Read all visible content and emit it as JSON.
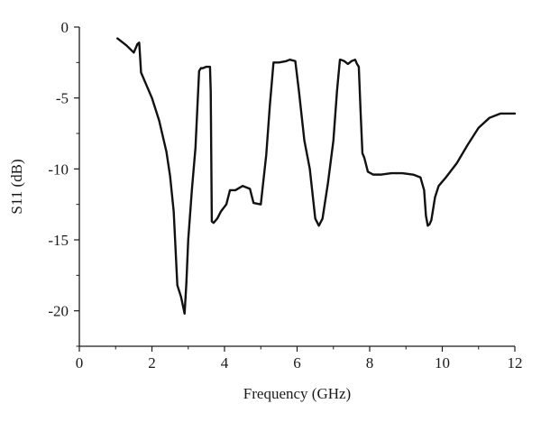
{
  "chart_data": {
    "type": "line",
    "title": "",
    "xlabel": "Frequency (GHz)",
    "ylabel": "S11 (dB)",
    "xlim": [
      0,
      12
    ],
    "ylim": [
      -22.5,
      0
    ],
    "x_ticks": [
      0,
      2,
      4,
      6,
      8,
      10,
      12
    ],
    "x_tick_labels": [
      "0",
      "2",
      "4",
      "6",
      "8",
      "10",
      "12"
    ],
    "y_ticks": [
      0,
      -5,
      -10,
      -15,
      -20
    ],
    "y_tick_labels": [
      "0",
      "-5",
      "-10",
      "-15",
      "-20"
    ],
    "grid": false,
    "legend": "none",
    "colors": {
      "line": "#111111",
      "axis": "#1a1a1a",
      "background": "#ffffff"
    },
    "series": [
      {
        "x": [
          1.05,
          1.3,
          1.5,
          1.6,
          1.65,
          1.7,
          1.8,
          2.0,
          2.2,
          2.4,
          2.5,
          2.6,
          2.7,
          2.8,
          2.9,
          2.95,
          3.0,
          3.1,
          3.2,
          3.3,
          3.35,
          3.4,
          3.5,
          3.6,
          3.62,
          3.65,
          3.7,
          3.8,
          3.9,
          4.05,
          4.15,
          4.3,
          4.5,
          4.7,
          4.8,
          5.0,
          5.15,
          5.25,
          5.35,
          5.5,
          5.7,
          5.8,
          5.95,
          6.05,
          6.2,
          6.35,
          6.5,
          6.6,
          6.7,
          6.85,
          7.0,
          7.1,
          7.18,
          7.2,
          7.3,
          7.4,
          7.5,
          7.6,
          7.65,
          7.7,
          7.75,
          7.8,
          7.85,
          7.95,
          8.1,
          8.3,
          8.6,
          8.9,
          9.2,
          9.4,
          9.5,
          9.55,
          9.6,
          9.65,
          9.7,
          9.8,
          9.9,
          10.1,
          10.4,
          10.7,
          11.0,
          11.3,
          11.6,
          11.8,
          12.0
        ],
        "y": [
          -0.8,
          -1.3,
          -1.8,
          -1.2,
          -1.1,
          -3.2,
          -3.8,
          -5.0,
          -6.6,
          -8.8,
          -10.5,
          -13.0,
          -18.2,
          -19.0,
          -20.2,
          -18.0,
          -15.0,
          -11.5,
          -8.5,
          -3.1,
          -2.9,
          -2.9,
          -2.8,
          -2.8,
          -4.5,
          -13.7,
          -13.8,
          -13.5,
          -13.0,
          -12.5,
          -11.5,
          -11.5,
          -11.2,
          -11.4,
          -12.4,
          -12.5,
          -9.0,
          -5.5,
          -2.5,
          -2.5,
          -2.4,
          -2.3,
          -2.4,
          -4.5,
          -8.0,
          -10.0,
          -13.5,
          -14.0,
          -13.5,
          -11.0,
          -8.0,
          -4.5,
          -2.3,
          -2.3,
          -2.4,
          -2.6,
          -2.4,
          -2.3,
          -2.6,
          -2.8,
          -6.0,
          -8.9,
          -9.2,
          -10.2,
          -10.4,
          -10.4,
          -10.3,
          -10.3,
          -10.4,
          -10.6,
          -11.5,
          -13.3,
          -14.0,
          -13.9,
          -13.6,
          -12.0,
          -11.2,
          -10.6,
          -9.6,
          -8.3,
          -7.1,
          -6.4,
          -6.1,
          -6.1,
          -6.1
        ]
      }
    ]
  }
}
